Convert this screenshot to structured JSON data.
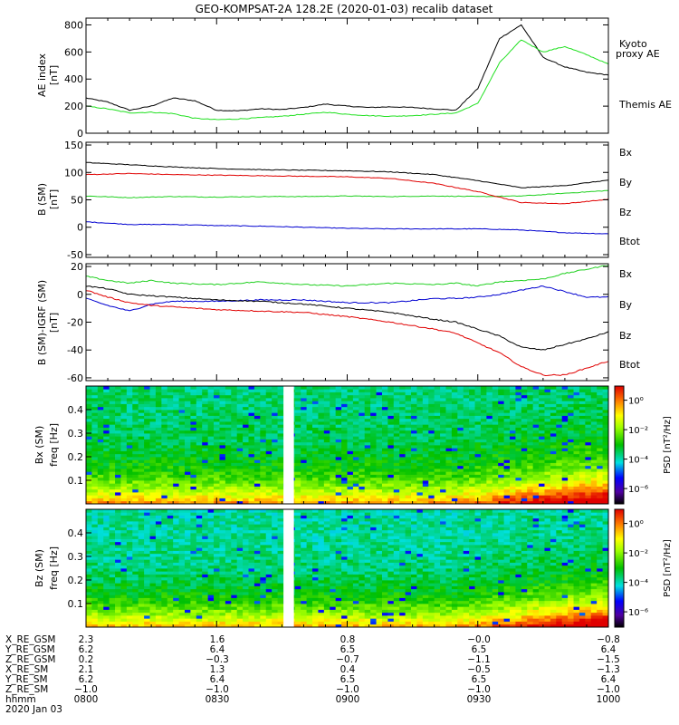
{
  "colors": {
    "black": "#000000",
    "red": "#e00000",
    "green": "#20d020",
    "blue": "#0000d0",
    "kyoto": "#20e020"
  },
  "chart_data": [
    {
      "id": "ae",
      "type": "line",
      "title": "GEO-KOMPSAT-2A 128.2E (2020-01-03) recalib dataset",
      "ylabel": [
        "AE index",
        "[nT]"
      ],
      "ylim": [
        0,
        850
      ],
      "yticks": [
        "0",
        "200",
        "400",
        "600",
        "800"
      ],
      "ytick_values": [
        0,
        200,
        400,
        600,
        800
      ],
      "x": [
        0,
        5,
        10,
        15,
        20,
        25,
        30,
        35,
        40,
        45,
        50,
        55,
        60,
        65,
        70,
        75,
        80,
        85,
        90,
        95,
        100,
        105,
        110,
        115,
        120
      ],
      "series": [
        {
          "name": "Themis AE",
          "color": "black",
          "values": [
            260,
            230,
            170,
            200,
            260,
            240,
            170,
            165,
            180,
            175,
            190,
            215,
            200,
            190,
            195,
            190,
            180,
            170,
            330,
            700,
            800,
            560,
            490,
            450,
            430
          ]
        },
        {
          "name": "Kyoto proxy AE",
          "color": "kyoto",
          "values": [
            200,
            180,
            150,
            155,
            145,
            110,
            100,
            105,
            115,
            125,
            140,
            155,
            140,
            130,
            125,
            130,
            140,
            150,
            220,
            520,
            690,
            600,
            640,
            580,
            510
          ]
        }
      ],
      "legend": [
        "Kyoto proxy AE",
        "Themis AE"
      ]
    },
    {
      "id": "bsm",
      "type": "line",
      "ylabel": [
        "B (SM)",
        "[nT]"
      ],
      "ylim": [
        -55,
        155
      ],
      "yticks": [
        "-50",
        "0",
        "50",
        "100",
        "150"
      ],
      "ytick_values": [
        -50,
        0,
        50,
        100,
        150
      ],
      "x": [
        0,
        10,
        20,
        30,
        40,
        50,
        60,
        70,
        80,
        90,
        100,
        110,
        120
      ],
      "series": [
        {
          "name": "Bx",
          "color": "blue",
          "values": [
            10,
            5,
            5,
            3,
            2,
            0,
            -2,
            -3,
            -3,
            -3,
            -5,
            -10,
            -12
          ]
        },
        {
          "name": "By",
          "color": "green",
          "values": [
            57,
            54,
            56,
            55,
            56,
            56,
            57,
            56,
            57,
            56,
            57,
            62,
            67
          ]
        },
        {
          "name": "Bz",
          "color": "red",
          "values": [
            96,
            98,
            96,
            95,
            94,
            93,
            92,
            89,
            80,
            65,
            45,
            43,
            51
          ]
        },
        {
          "name": "Btot",
          "color": "black",
          "values": [
            118,
            114,
            110,
            107,
            105,
            104,
            103,
            101,
            96,
            85,
            72,
            76,
            86
          ]
        }
      ],
      "legend": [
        "Bx",
        "By",
        "Bz",
        "Btot"
      ]
    },
    {
      "id": "bigrf",
      "type": "line",
      "ylabel": [
        "B (SM)-IGRF (SM)",
        "[nT]"
      ],
      "ylim": [
        -62,
        22
      ],
      "yticks": [
        "-60",
        "-40",
        "-20",
        "0",
        "20"
      ],
      "ytick_values": [
        -60,
        -40,
        -20,
        0,
        20
      ],
      "x": [
        0,
        5,
        10,
        15,
        20,
        30,
        40,
        50,
        60,
        70,
        80,
        85,
        90,
        95,
        100,
        105,
        110,
        115,
        120
      ],
      "series": [
        {
          "name": "Bx",
          "color": "blue",
          "values": [
            -3,
            -8,
            -12,
            -7,
            -5,
            -5,
            -4,
            -4,
            -6,
            -6,
            -3,
            -3,
            -2,
            0,
            3,
            6,
            2,
            -2,
            -2
          ]
        },
        {
          "name": "By",
          "color": "green",
          "values": [
            13,
            10,
            8,
            10,
            8,
            7,
            9,
            7,
            6,
            8,
            7,
            8,
            6,
            9,
            10,
            11,
            15,
            18,
            21
          ]
        },
        {
          "name": "Bz",
          "color": "red",
          "values": [
            3,
            -2,
            -6,
            -8,
            -9,
            -11,
            -12,
            -13,
            -16,
            -20,
            -25,
            -28,
            -35,
            -42,
            -52,
            -58,
            -58,
            -53,
            -48
          ]
        },
        {
          "name": "Btot",
          "color": "black",
          "values": [
            6,
            4,
            0,
            -1,
            -2,
            -4,
            -5,
            -7,
            -10,
            -13,
            -18,
            -20,
            -25,
            -30,
            -38,
            -40,
            -36,
            -32,
            -27
          ]
        }
      ],
      "legend": [
        "Bx",
        "By",
        "Bz",
        "Btot"
      ]
    },
    {
      "id": "bxspec",
      "type": "heatmap",
      "ylabel": [
        "Bx (SM)",
        "freq [Hz]"
      ],
      "ylim": [
        0,
        0.5
      ],
      "yticks": [
        "0.1",
        "0.2",
        "0.3",
        "0.4"
      ],
      "ytick_values": [
        0.1,
        0.2,
        0.3,
        0.4
      ],
      "data_gap": [
        0.378,
        0.398
      ],
      "colorbar_label": "PSD [nT²/Hz]",
      "colorbar_ticks": [
        "10⁰",
        "10⁻²",
        "10⁻⁴",
        "10⁻⁶"
      ]
    },
    {
      "id": "bzspec",
      "type": "heatmap",
      "ylabel": [
        "Bz (SM)",
        "freq [Hz]"
      ],
      "ylim": [
        0,
        0.5
      ],
      "yticks": [
        "0.1",
        "0.2",
        "0.3",
        "0.4"
      ],
      "ytick_values": [
        0.1,
        0.2,
        0.3,
        0.4
      ],
      "data_gap": [
        0.378,
        0.398
      ],
      "colorbar_label": "PSD [nT²/Hz]",
      "colorbar_ticks": [
        "10⁰",
        "10⁻²",
        "10⁻⁴",
        "10⁻⁶"
      ]
    }
  ],
  "ephemeris": {
    "row_labels": [
      "X_RE_GSM",
      "Y_RE_GSM",
      "Z_RE_GSM",
      "X_RE_SM",
      "Y_RE_SM",
      "Z_RE_SM",
      "hhmm",
      "2020 Jan 03"
    ],
    "columns": [
      [
        "2.3",
        "6.2",
        "0.2",
        "2.1",
        "6.2",
        "−1.0",
        "0800"
      ],
      [
        "1.6",
        "6.4",
        "−0.3",
        "1.3",
        "6.4",
        "−1.0",
        "0830"
      ],
      [
        "0.8",
        "6.5",
        "−0.7",
        "0.4",
        "6.5",
        "−1.0",
        "0900"
      ],
      [
        "−0.0",
        "6.5",
        "−1.1",
        "−0.5",
        "6.5",
        "−1.0",
        "0930"
      ],
      [
        "−0.8",
        "6.4",
        "−1.5",
        "−1.3",
        "6.4",
        "−1.0",
        "1000"
      ]
    ]
  }
}
